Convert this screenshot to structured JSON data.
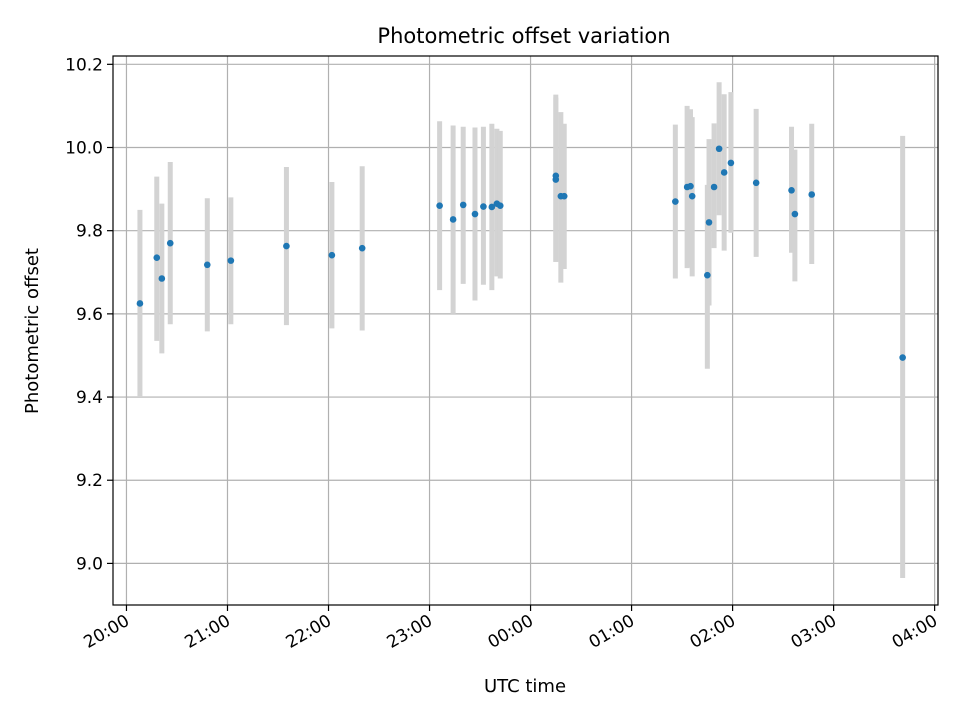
{
  "chart_data": {
    "type": "scatter",
    "title": "Photometric offset variation",
    "xlabel": "UTC time",
    "ylabel": "Photometric offset",
    "x_unit": "UTC time of night (20:00 to 04:00)",
    "xlim": [
      "19:52",
      "04:02"
    ],
    "ylim": [
      8.9,
      10.22
    ],
    "x_ticks": [
      "20:00",
      "21:00",
      "22:00",
      "23:00",
      "00:00",
      "01:00",
      "02:00",
      "03:00",
      "04:00"
    ],
    "y_ticks": [
      9.0,
      9.2,
      9.4,
      9.6,
      9.8,
      10.0,
      10.2
    ],
    "y_tick_labels": [
      "9.0",
      "9.2",
      "9.4",
      "9.6",
      "9.8",
      "10.0",
      "10.2"
    ],
    "grid": true,
    "point_color": "#1f77b4",
    "errorbar_color": "#d3d3d3",
    "series": [
      {
        "points": [
          {
            "t": "20:08",
            "y": 9.625,
            "lo": 9.4,
            "hi": 9.85
          },
          {
            "t": "20:18",
            "y": 9.735,
            "lo": 9.535,
            "hi": 9.93
          },
          {
            "t": "20:21",
            "y": 9.685,
            "lo": 9.505,
            "hi": 9.865
          },
          {
            "t": "20:26",
            "y": 9.77,
            "lo": 9.575,
            "hi": 9.965
          },
          {
            "t": "20:48",
            "y": 9.718,
            "lo": 9.558,
            "hi": 9.878
          },
          {
            "t": "21:02",
            "y": 9.728,
            "lo": 9.575,
            "hi": 9.88
          },
          {
            "t": "21:35",
            "y": 9.763,
            "lo": 9.573,
            "hi": 9.953
          },
          {
            "t": "22:02",
            "y": 9.741,
            "lo": 9.565,
            "hi": 9.917
          },
          {
            "t": "22:20",
            "y": 9.758,
            "lo": 9.56,
            "hi": 9.955
          },
          {
            "t": "23:06",
            "y": 9.86,
            "lo": 9.657,
            "hi": 10.063
          },
          {
            "t": "23:14",
            "y": 9.827,
            "lo": 9.6,
            "hi": 10.053
          },
          {
            "t": "23:20",
            "y": 9.862,
            "lo": 9.672,
            "hi": 10.05
          },
          {
            "t": "23:27",
            "y": 9.84,
            "lo": 9.632,
            "hi": 10.048
          },
          {
            "t": "23:32",
            "y": 9.858,
            "lo": 9.67,
            "hi": 10.05
          },
          {
            "t": "23:37",
            "y": 9.857,
            "lo": 9.657,
            "hi": 10.057
          },
          {
            "t": "23:40",
            "y": 9.865,
            "lo": 9.69,
            "hi": 10.045
          },
          {
            "t": "23:42",
            "y": 9.86,
            "lo": 9.685,
            "hi": 10.04
          },
          {
            "t": "00:15",
            "y": 9.932,
            "lo": 9.725,
            "hi": 10.127
          },
          {
            "t": "00:15",
            "y": 9.923,
            "lo": 9.725,
            "hi": 10.12
          },
          {
            "t": "00:18",
            "y": 9.883,
            "lo": 9.675,
            "hi": 10.085
          },
          {
            "t": "00:20",
            "y": 9.883,
            "lo": 9.708,
            "hi": 10.057
          },
          {
            "t": "01:26",
            "y": 9.87,
            "lo": 9.685,
            "hi": 10.055
          },
          {
            "t": "01:33",
            "y": 9.905,
            "lo": 9.71,
            "hi": 10.1
          },
          {
            "t": "01:35",
            "y": 9.907,
            "lo": 9.712,
            "hi": 10.092
          },
          {
            "t": "01:36",
            "y": 9.883,
            "lo": 9.69,
            "hi": 10.073
          },
          {
            "t": "01:45",
            "y": 9.693,
            "lo": 9.468,
            "hi": 9.91
          },
          {
            "t": "01:46",
            "y": 9.82,
            "lo": 9.62,
            "hi": 10.02
          },
          {
            "t": "01:49",
            "y": 9.905,
            "lo": 9.758,
            "hi": 10.058
          },
          {
            "t": "01:52",
            "y": 9.997,
            "lo": 9.837,
            "hi": 10.157
          },
          {
            "t": "01:55",
            "y": 9.94,
            "lo": 9.752,
            "hi": 10.128
          },
          {
            "t": "01:59",
            "y": 9.963,
            "lo": 9.795,
            "hi": 10.133
          },
          {
            "t": "02:14",
            "y": 9.915,
            "lo": 9.737,
            "hi": 10.093
          },
          {
            "t": "02:35",
            "y": 9.897,
            "lo": 9.747,
            "hi": 10.05
          },
          {
            "t": "02:37",
            "y": 9.84,
            "lo": 9.678,
            "hi": 9.995
          },
          {
            "t": "02:47",
            "y": 9.887,
            "lo": 9.72,
            "hi": 10.057
          },
          {
            "t": "03:41",
            "y": 9.495,
            "lo": 8.965,
            "hi": 10.028
          }
        ]
      }
    ]
  }
}
